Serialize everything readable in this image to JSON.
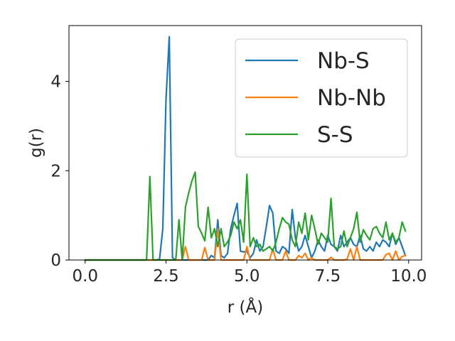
{
  "chart_data": {
    "type": "line",
    "title": "",
    "xlabel": "r (Å)",
    "ylabel": "g(r)",
    "xlim": [
      -0.5,
      10.4
    ],
    "ylim": [
      0,
      5.25
    ],
    "xticks": [
      0.0,
      2.5,
      5.0,
      7.5,
      10.0
    ],
    "xtick_labels": [
      "0.0",
      "2.5",
      "5.0",
      "7.5",
      "10.0"
    ],
    "yticks": [
      0,
      2,
      4
    ],
    "ytick_labels": [
      "0",
      "2",
      "4"
    ],
    "grid": false,
    "legend_position": "top-right",
    "series": [
      {
        "name": "Nb-S",
        "color": "#1f77b4",
        "points": [
          [
            0,
            0
          ],
          [
            2.2,
            0
          ],
          [
            2.3,
            0.02
          ],
          [
            2.4,
            0.7
          ],
          [
            2.5,
            3.6
          ],
          [
            2.6,
            5.0
          ],
          [
            2.7,
            0.05
          ],
          [
            2.8,
            0
          ],
          [
            3.8,
            0
          ],
          [
            3.9,
            0.1
          ],
          [
            4.0,
            0.05
          ],
          [
            4.1,
            0.9
          ],
          [
            4.2,
            0.1
          ],
          [
            4.3,
            0.05
          ],
          [
            4.4,
            0.15
          ],
          [
            4.5,
            0.7
          ],
          [
            4.6,
            1.0
          ],
          [
            4.7,
            1.27
          ],
          [
            4.8,
            0.2
          ],
          [
            4.9,
            0.18
          ],
          [
            5.0,
            0.2
          ],
          [
            5.1,
            0.05
          ],
          [
            5.2,
            0.15
          ],
          [
            5.3,
            0.45
          ],
          [
            5.4,
            0.2
          ],
          [
            5.5,
            0.3
          ],
          [
            5.6,
            0.75
          ],
          [
            5.7,
            1.22
          ],
          [
            5.8,
            1.05
          ],
          [
            5.9,
            0.2
          ],
          [
            6.0,
            0.15
          ],
          [
            6.1,
            0.3
          ],
          [
            6.2,
            0.25
          ],
          [
            6.3,
            0.15
          ],
          [
            6.4,
            1.13
          ],
          [
            6.5,
            0.5
          ],
          [
            6.6,
            0.2
          ],
          [
            6.7,
            0.3
          ],
          [
            6.8,
            0.55
          ],
          [
            6.9,
            0.3
          ],
          [
            7.0,
            0.05
          ],
          [
            7.1,
            0.2
          ],
          [
            7.2,
            0.45
          ],
          [
            7.3,
            0.3
          ],
          [
            7.4,
            0.2
          ],
          [
            7.5,
            0.55
          ],
          [
            7.6,
            0.35
          ],
          [
            7.7,
            0.3
          ],
          [
            7.8,
            0.2
          ],
          [
            7.9,
            0.55
          ],
          [
            8.0,
            0.3
          ],
          [
            8.1,
            0.4
          ],
          [
            8.2,
            0.5
          ],
          [
            8.3,
            0.35
          ],
          [
            8.4,
            0.3
          ],
          [
            8.5,
            0.55
          ],
          [
            8.6,
            0.25
          ],
          [
            8.7,
            0.2
          ],
          [
            8.8,
            0.3
          ],
          [
            8.9,
            0.2
          ],
          [
            9.0,
            0.4
          ],
          [
            9.1,
            0.3
          ],
          [
            9.2,
            0.45
          ],
          [
            9.3,
            0.4
          ],
          [
            9.4,
            0.3
          ],
          [
            9.5,
            0.6
          ],
          [
            9.6,
            0.35
          ],
          [
            9.7,
            0.5
          ],
          [
            9.8,
            0.3
          ],
          [
            9.9,
            0.1
          ]
        ]
      },
      {
        "name": "Nb-Nb",
        "color": "#ff7f0e",
        "points": [
          [
            0,
            0
          ],
          [
            3.0,
            0
          ],
          [
            3.1,
            0.3
          ],
          [
            3.2,
            0
          ],
          [
            3.6,
            0
          ],
          [
            3.7,
            0.28
          ],
          [
            3.8,
            0
          ],
          [
            4.0,
            0
          ],
          [
            4.1,
            0.7
          ],
          [
            4.2,
            0
          ],
          [
            4.9,
            0
          ],
          [
            5.0,
            0.3
          ],
          [
            5.1,
            0
          ],
          [
            5.7,
            0
          ],
          [
            5.8,
            0.25
          ],
          [
            5.9,
            0
          ],
          [
            6.1,
            0
          ],
          [
            6.2,
            0.2
          ],
          [
            6.3,
            0
          ],
          [
            6.5,
            0
          ],
          [
            6.6,
            0.1
          ],
          [
            6.7,
            0.05
          ],
          [
            6.8,
            0.15
          ],
          [
            6.9,
            0
          ],
          [
            7.0,
            0.05
          ],
          [
            7.1,
            0
          ],
          [
            7.5,
            0
          ],
          [
            7.6,
            0.06
          ],
          [
            7.7,
            0
          ],
          [
            8.0,
            0
          ],
          [
            8.1,
            0.02
          ],
          [
            8.2,
            0.25
          ],
          [
            8.3,
            0
          ],
          [
            8.4,
            0.3
          ],
          [
            8.5,
            0
          ],
          [
            9.2,
            0
          ],
          [
            9.3,
            0.12
          ],
          [
            9.4,
            0.15
          ],
          [
            9.5,
            0
          ],
          [
            9.6,
            0.2
          ],
          [
            9.7,
            0
          ],
          [
            9.8,
            0.08
          ],
          [
            9.9,
            0.1
          ]
        ]
      },
      {
        "name": "S-S",
        "color": "#2ca02c",
        "points": [
          [
            0,
            0
          ],
          [
            1.9,
            0
          ],
          [
            2.0,
            1.87
          ],
          [
            2.1,
            0
          ],
          [
            2.8,
            0
          ],
          [
            2.9,
            0.9
          ],
          [
            3.0,
            0
          ],
          [
            3.1,
            1.18
          ],
          [
            3.2,
            1.5
          ],
          [
            3.3,
            1.77
          ],
          [
            3.4,
            1.97
          ],
          [
            3.5,
            0.75
          ],
          [
            3.6,
            0.6
          ],
          [
            3.7,
            0.43
          ],
          [
            3.8,
            1.18
          ],
          [
            3.9,
            0.5
          ],
          [
            4.0,
            0.7
          ],
          [
            4.1,
            0.3
          ],
          [
            4.2,
            0.7
          ],
          [
            4.3,
            0.3
          ],
          [
            4.4,
            0.4
          ],
          [
            4.5,
            0.55
          ],
          [
            4.6,
            0.85
          ],
          [
            4.7,
            0.7
          ],
          [
            4.8,
            0.9
          ],
          [
            4.9,
            0.4
          ],
          [
            5.0,
            1.92
          ],
          [
            5.1,
            0.3
          ],
          [
            5.2,
            0.5
          ],
          [
            5.3,
            0.3
          ],
          [
            5.4,
            0.35
          ],
          [
            5.5,
            0.2
          ],
          [
            5.6,
            0.25
          ],
          [
            5.7,
            0.3
          ],
          [
            5.8,
            0.2
          ],
          [
            5.9,
            0.4
          ],
          [
            6.0,
            0.7
          ],
          [
            6.1,
            0.95
          ],
          [
            6.2,
            0.85
          ],
          [
            6.3,
            0.8
          ],
          [
            6.4,
            0.45
          ],
          [
            6.5,
            0.3
          ],
          [
            6.6,
            0.85
          ],
          [
            6.7,
            0.6
          ],
          [
            6.8,
            1.05
          ],
          [
            6.9,
            0.45
          ],
          [
            7.0,
            1.0
          ],
          [
            7.1,
            0.7
          ],
          [
            7.2,
            0.35
          ],
          [
            7.3,
            0.6
          ],
          [
            7.4,
            0.5
          ],
          [
            7.5,
            0.4
          ],
          [
            7.6,
            1.38
          ],
          [
            7.7,
            0.3
          ],
          [
            7.8,
            0.25
          ],
          [
            7.9,
            0.3
          ],
          [
            8.0,
            0.65
          ],
          [
            8.1,
            0.3
          ],
          [
            8.2,
            0.5
          ],
          [
            8.3,
            0.7
          ],
          [
            8.4,
            1.07
          ],
          [
            8.5,
            0.4
          ],
          [
            8.6,
            0.68
          ],
          [
            8.7,
            0.55
          ],
          [
            8.8,
            0.45
          ],
          [
            8.9,
            0.7
          ],
          [
            9.0,
            0.75
          ],
          [
            9.1,
            0.6
          ],
          [
            9.2,
            0.5
          ],
          [
            9.3,
            0.85
          ],
          [
            9.4,
            0.45
          ],
          [
            9.5,
            0.6
          ],
          [
            9.6,
            0.4
          ],
          [
            9.7,
            0.5
          ],
          [
            9.8,
            0.85
          ],
          [
            9.9,
            0.65
          ]
        ]
      }
    ]
  }
}
